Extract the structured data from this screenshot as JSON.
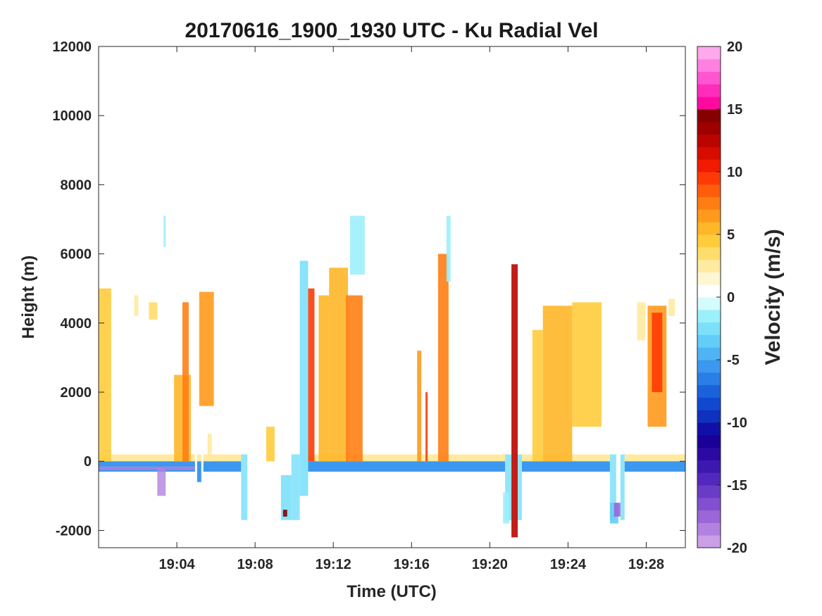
{
  "chart_data": {
    "type": "heatmap",
    "title": "20170616_1900_1930 UTC - Ku Radial Vel",
    "xlabel": "Time (UTC)",
    "ylabel": "Height (m)",
    "xlim": [
      "19:00",
      "19:30"
    ],
    "ylim": [
      -2500,
      12000
    ],
    "x_ticks": [
      "19:04",
      "19:08",
      "19:12",
      "19:16",
      "19:20",
      "19:24",
      "19:28"
    ],
    "y_ticks": [
      -2000,
      0,
      2000,
      4000,
      6000,
      8000,
      10000,
      12000
    ],
    "grid": false,
    "colorbar": {
      "label": "Velocity (m/s)",
      "range": [
        -20,
        20
      ],
      "ticks": [
        -20,
        -15,
        -10,
        -5,
        0,
        5,
        10,
        15,
        20
      ],
      "colors": [
        "#c9a0e8",
        "#b282e0",
        "#9a66d8",
        "#8250cf",
        "#6a3cc6",
        "#5328bc",
        "#3c18b0",
        "#2a0aa2",
        "#1a0098",
        "#1010a8",
        "#1030c0",
        "#1048d0",
        "#1a62dc",
        "#2a7ee6",
        "#3c98ee",
        "#50b4f4",
        "#64ccf8",
        "#7ce0fa",
        "#9cf0fc",
        "#d4fbfd",
        "#ffffff",
        "#fff6d2",
        "#ffeaa0",
        "#ffdc6c",
        "#ffcc3c",
        "#ffb628",
        "#ff9a1c",
        "#ff7e14",
        "#ff5c0c",
        "#ff3a06",
        "#f21a00",
        "#d60c00",
        "#ba0400",
        "#9e0000",
        "#860000",
        "#ff0aa0",
        "#ff2cbc",
        "#ff55d0",
        "#ff80e0",
        "#ffa8ec"
      ]
    },
    "regions": [
      {
        "x": [
          19.0,
          19.3
        ],
        "y": [
          0,
          5000
        ],
        "v": 4
      },
      {
        "x": [
          19.85,
          19.95
        ],
        "y": [
          4200,
          4800
        ],
        "v": 2
      },
      {
        "x": [
          20.2,
          20.4
        ],
        "y": [
          4100,
          4600
        ],
        "v": 3
      },
      {
        "x": [
          20.55,
          20.6
        ],
        "y": [
          6200,
          7100
        ],
        "v": -2
      },
      {
        "x": [
          20.8,
          21.2
        ],
        "y": [
          0,
          2500
        ],
        "v": 5
      },
      {
        "x": [
          21.0,
          21.15
        ],
        "y": [
          0,
          4600
        ],
        "v": 7
      },
      {
        "x": [
          21.4,
          21.75
        ],
        "y": [
          1600,
          4900
        ],
        "v": 6
      },
      {
        "x": [
          21.6,
          21.7
        ],
        "y": [
          0,
          800
        ],
        "v": 2
      },
      {
        "x": [
          23.0,
          23.2
        ],
        "y": [
          0,
          1000
        ],
        "v": 4
      },
      {
        "x": [
          23.35,
          23.6
        ],
        "y": [
          -1700,
          -400
        ],
        "v": -3
      },
      {
        "x": [
          23.4,
          23.5
        ],
        "y": [
          -1600,
          -1400
        ],
        "v": 14
      },
      {
        "x": [
          23.8,
          24.0
        ],
        "y": [
          -1000,
          5800
        ],
        "v": -3
      },
      {
        "x": [
          24.0,
          24.15
        ],
        "y": [
          0,
          5000
        ],
        "v": 9
      },
      {
        "x": [
          24.25,
          24.5
        ],
        "y": [
          0,
          4800
        ],
        "v": 5
      },
      {
        "x": [
          24.5,
          24.95
        ],
        "y": [
          0,
          5600
        ],
        "v": 5
      },
      {
        "x": [
          24.9,
          25.3
        ],
        "y": [
          0,
          4800
        ],
        "v": 7
      },
      {
        "x": [
          25.0,
          25.35
        ],
        "y": [
          5400,
          7100
        ],
        "v": -2
      },
      {
        "x": [
          26.6,
          26.7
        ],
        "y": [
          0,
          3200
        ],
        "v": 6
      },
      {
        "x": [
          26.8,
          26.85
        ],
        "y": [
          0,
          2000
        ],
        "v": 9
      },
      {
        "x": [
          27.1,
          27.35
        ],
        "y": [
          0,
          6000
        ],
        "v": 7
      },
      {
        "x": [
          27.3,
          27.4
        ],
        "y": [
          5200,
          7100
        ],
        "v": -2
      },
      {
        "x": [
          28.65,
          28.8
        ],
        "y": [
          -1800,
          -900
        ],
        "v": -2
      },
      {
        "x": [
          28.85,
          29.0
        ],
        "y": [
          -2200,
          5700
        ],
        "v": 12
      },
      {
        "x": [
          29.35,
          29.6
        ],
        "y": [
          0,
          3800
        ],
        "v": 4
      },
      {
        "x": [
          29.6,
          30.3
        ],
        "y": [
          0,
          4500
        ],
        "v": 5
      },
      {
        "x": [
          30.3,
          31.0
        ],
        "y": [
          1000,
          4600
        ],
        "v": 4
      },
      {
        "x": [
          30.5,
          31.2
        ],
        "y": [
          6000,
          7100
        ],
        "v": 0.5
      },
      {
        "x": [
          31.2,
          31.4
        ],
        "y": [
          -1800,
          -1200
        ],
        "v": -4
      },
      {
        "x": [
          31.3,
          31.45
        ],
        "y": [
          -1600,
          -1200
        ],
        "v": -18
      },
      {
        "x": [
          31.85,
          32.05
        ],
        "y": [
          3500,
          4600
        ],
        "v": 2
      },
      {
        "x": [
          32.1,
          32.55
        ],
        "y": [
          1000,
          4500
        ],
        "v": 6
      },
      {
        "x": [
          32.2,
          32.45
        ],
        "y": [
          2000,
          4300
        ],
        "v": 9
      },
      {
        "x": [
          32.6,
          32.75
        ],
        "y": [
          4200,
          4700
        ],
        "v": 2
      }
    ],
    "surface": [
      {
        "x": [
          19.0,
          21.3
        ],
        "y": [
          -300,
          200
        ]
      },
      {
        "x": [
          21.35,
          21.45
        ],
        "y": [
          -600,
          200
        ]
      },
      {
        "x": [
          21.5,
          22.4
        ],
        "y": [
          -300,
          200
        ]
      },
      {
        "x": [
          24.0,
          28.7
        ],
        "y": [
          -300,
          200
        ]
      },
      {
        "x": [
          29.1,
          31.2
        ],
        "y": [
          -300,
          200
        ]
      },
      {
        "x": [
          31.55,
          33.0
        ],
        "y": [
          -300,
          200
        ]
      }
    ],
    "transitions": [
      {
        "x": [
          22.4,
          22.55
        ],
        "y_mid": -700
      },
      {
        "x": [
          23.6,
          23.8
        ],
        "y_mid": -700
      },
      {
        "x": [
          28.7,
          28.85
        ],
        "y_mid": -700
      },
      {
        "x": [
          29.0,
          29.1
        ],
        "y_mid": -700
      },
      {
        "x": [
          31.2,
          31.35
        ],
        "y_mid": -700
      },
      {
        "x": [
          31.45,
          31.55
        ],
        "y_mid": -700
      }
    ],
    "pink_patches": [
      {
        "x": [
          19.0,
          21.3
        ],
        "y": [
          -250,
          -150
        ],
        "v": -19
      },
      {
        "x": [
          20.4,
          20.6
        ],
        "y": [
          -1000,
          -200
        ],
        "v": -19
      }
    ]
  }
}
